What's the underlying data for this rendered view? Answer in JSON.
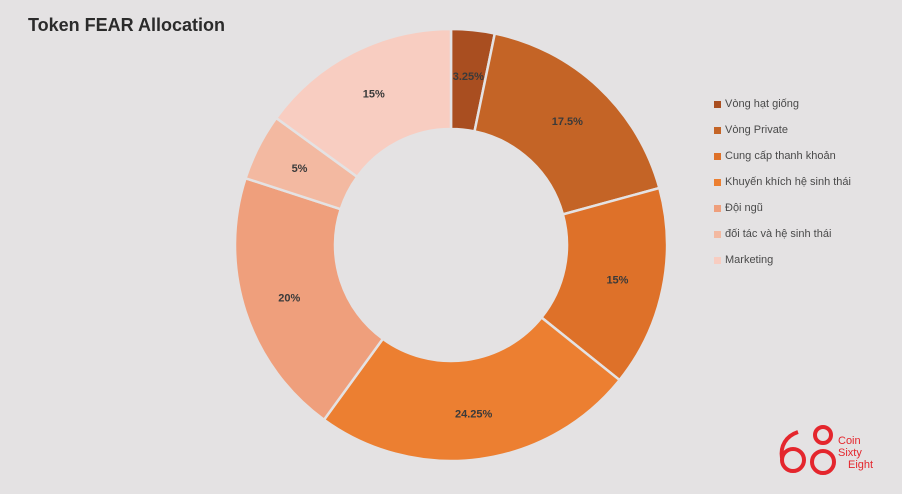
{
  "chart_data": {
    "type": "pie",
    "title": "Token FEAR Allocation",
    "donut": true,
    "legend_position": "right",
    "slices": [
      {
        "label": "Vòng hạt giống",
        "value": 3.25,
        "display": "3.25%",
        "color": "#a94e20"
      },
      {
        "label": "Vòng Private",
        "value": 17.5,
        "display": "17.5%",
        "color": "#c46426"
      },
      {
        "label": "Cung cấp thanh khoản",
        "value": 15,
        "display": "15%",
        "color": "#de7129"
      },
      {
        "label": "Khuyến khích hệ sinh thái",
        "value": 24.25,
        "display": "24.25%",
        "color": "#ec7f31"
      },
      {
        "label": "Đội ngũ",
        "value": 20,
        "display": "20%",
        "color": "#ef9f7c"
      },
      {
        "label": "đối tác và hệ sinh thái",
        "value": 5,
        "display": "5%",
        "color": "#f3b9a1"
      },
      {
        "label": "Marketing",
        "value": 15,
        "display": "15%",
        "color": "#f8cdc1"
      }
    ]
  },
  "brand": {
    "logo_text": [
      "Coin",
      "Sixty",
      "Eight"
    ],
    "color": "#e4262d"
  }
}
